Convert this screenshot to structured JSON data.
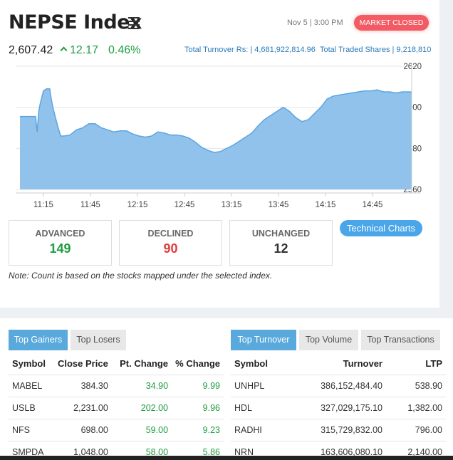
{
  "header": {
    "title": "NEPSE Index",
    "date": "Nov 5 | 3:00 PM",
    "market_status": "MARKET CLOSED"
  },
  "index": {
    "value": "2,607.42",
    "change": "12.17",
    "percent": "0.46%",
    "turnover_label": "Total Turnover Rs: | 4,681,922,814.96",
    "shares_label": "Total Traded Shares | 9,218,810"
  },
  "chart_data": {
    "type": "area",
    "x_tick_labels": [
      "11:15",
      "11:45",
      "12:15",
      "12:45",
      "13:15",
      "13:45",
      "14:15",
      "14:45"
    ],
    "y_tick_labels": [
      "2620",
      "2600",
      "2580",
      "2560"
    ],
    "ylim": [
      2560,
      2620
    ],
    "x_minutes_from": "11:00",
    "x": [
      0,
      10,
      11,
      12,
      13,
      15,
      17,
      19,
      20,
      21,
      22,
      24,
      26,
      28,
      32,
      36,
      40,
      44,
      48,
      52,
      56,
      60,
      64,
      68,
      72,
      76,
      80,
      84,
      88,
      92,
      96,
      100,
      104,
      108,
      112,
      116,
      120,
      124,
      128,
      132,
      136,
      140,
      144,
      148,
      152,
      156,
      160,
      164,
      168,
      172,
      176,
      180,
      184,
      188,
      192,
      196,
      200,
      204,
      208,
      212,
      216,
      220,
      224,
      228,
      232,
      236,
      240,
      244,
      248,
      249,
      250
    ],
    "y": [
      2595.5,
      2595.5,
      2588,
      2598,
      2602,
      2608,
      2609,
      2609,
      2604,
      2600,
      2597,
      2591,
      2586,
      2586,
      2586.5,
      2589,
      2590,
      2592,
      2592,
      2590,
      2589,
      2588,
      2588.5,
      2588.5,
      2587,
      2586,
      2585.5,
      2586,
      2588,
      2587.5,
      2586.5,
      2586.5,
      2586,
      2585,
      2583,
      2580.5,
      2579,
      2578,
      2578.5,
      2580,
      2581.5,
      2583.5,
      2585.5,
      2587.5,
      2591,
      2594,
      2596,
      2598,
      2600,
      2598,
      2595,
      2593,
      2594,
      2597,
      2600,
      2604,
      2605.5,
      2606,
      2606.5,
      2607,
      2607.5,
      2608,
      2608,
      2608.5,
      2607.5,
      2607.5,
      2607,
      2607.5,
      2607.5,
      2607.5,
      2607.42
    ],
    "fill_color": "#90c2ec",
    "line_color": "#5da5e0",
    "grid": true
  },
  "stats": {
    "advanced_label": "ADVANCED",
    "advanced": "149",
    "declined_label": "DECLINED",
    "declined": "90",
    "unchanged_label": "UNCHANGED",
    "unchanged": "12"
  },
  "tech_button": "Technical Charts",
  "note": "Note: Count is based on the stocks mapped under the selected index.",
  "gainers_tabs": [
    "Top Gainers",
    "Top Losers"
  ],
  "turnover_tabs": [
    "Top Turnover",
    "Top Volume",
    "Top Transactions"
  ],
  "gainers": {
    "headers": [
      "Symbol",
      "Close Price",
      "Pt. Change",
      "% Change"
    ],
    "rows": [
      [
        "MABEL",
        "384.30",
        "34.90",
        "9.99"
      ],
      [
        "USLB",
        "2,231.00",
        "202.00",
        "9.96"
      ],
      [
        "NFS",
        "698.00",
        "59.00",
        "9.23"
      ],
      [
        "SMPDA",
        "1,048.00",
        "58.00",
        "5.86"
      ]
    ]
  },
  "turnover": {
    "headers": [
      "Symbol",
      "Turnover",
      "LTP"
    ],
    "rows": [
      [
        "UNHPL",
        "386,152,484.40",
        "538.90"
      ],
      [
        "HDL",
        "327,029,175.10",
        "1,382.00"
      ],
      [
        "RADHI",
        "315,729,832.00",
        "796.00"
      ],
      [
        "NRN",
        "163,606,080.10",
        "2,140.00"
      ]
    ]
  },
  "colors": {
    "positive": "#1f9d3f",
    "negative": "#e03c3c",
    "accent": "#5aa9dd",
    "closed_badge": "#f25b63"
  }
}
